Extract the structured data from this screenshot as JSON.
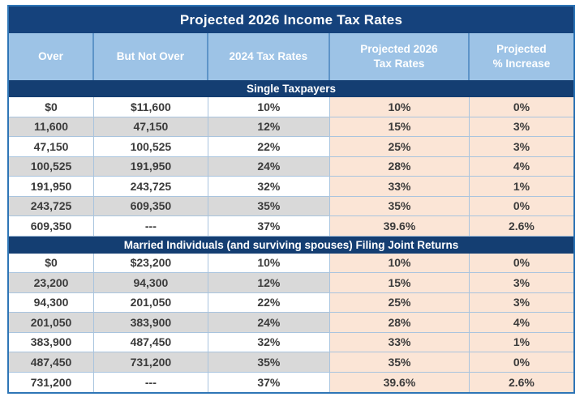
{
  "chart_data": {
    "type": "table",
    "title": "Projected 2026 Income Tax Rates",
    "columns": [
      "Over",
      "But Not Over",
      "2024 Tax Rates",
      "Projected 2026\nTax Rates",
      "Projected\n% Increase"
    ],
    "sections": [
      {
        "label": "Single Taxpayers",
        "rows": [
          [
            "$0",
            "$11,600",
            "10%",
            "10%",
            "0%"
          ],
          [
            "11,600",
            "47,150",
            "12%",
            "15%",
            "3%"
          ],
          [
            "47,150",
            "100,525",
            "22%",
            "25%",
            "3%"
          ],
          [
            "100,525",
            "191,950",
            "24%",
            "28%",
            "4%"
          ],
          [
            "191,950",
            "243,725",
            "32%",
            "33%",
            "1%"
          ],
          [
            "243,725",
            "609,350",
            "35%",
            "35%",
            "0%"
          ],
          [
            "609,350",
            "---",
            "37%",
            "39.6%",
            "2.6%"
          ]
        ]
      },
      {
        "label": "Married Individuals (and surviving spouses) Filing Joint Returns",
        "rows": [
          [
            "$0",
            "$23,200",
            "10%",
            "10%",
            "0%"
          ],
          [
            "23,200",
            "94,300",
            "12%",
            "15%",
            "3%"
          ],
          [
            "94,300",
            "201,050",
            "22%",
            "25%",
            "3%"
          ],
          [
            "201,050",
            "383,900",
            "24%",
            "28%",
            "4%"
          ],
          [
            "383,900",
            "487,450",
            "32%",
            "33%",
            "1%"
          ],
          [
            "487,450",
            "731,200",
            "35%",
            "35%",
            "0%"
          ],
          [
            "731,200",
            "---",
            "37%",
            "39.6%",
            "2.6%"
          ]
        ]
      }
    ],
    "layout_hints": {
      "highlighted_columns": [
        3,
        4
      ],
      "alternating_row_shading": true,
      "legend": "none",
      "grid": "on"
    }
  },
  "colors": {
    "title_bar": "#15427C",
    "section_bar": "#143E72",
    "column_header_bg": "#9DC3E6",
    "header_text": "#FFFFFF",
    "projected_column_bg": "#FBE5D6",
    "alt_row_bg": "#D9D9D9",
    "row_bg": "#FFFFFF",
    "data_text": "#3B3B3B",
    "table_border": "#2E75B6",
    "grid_line": "#A9C4DE"
  }
}
